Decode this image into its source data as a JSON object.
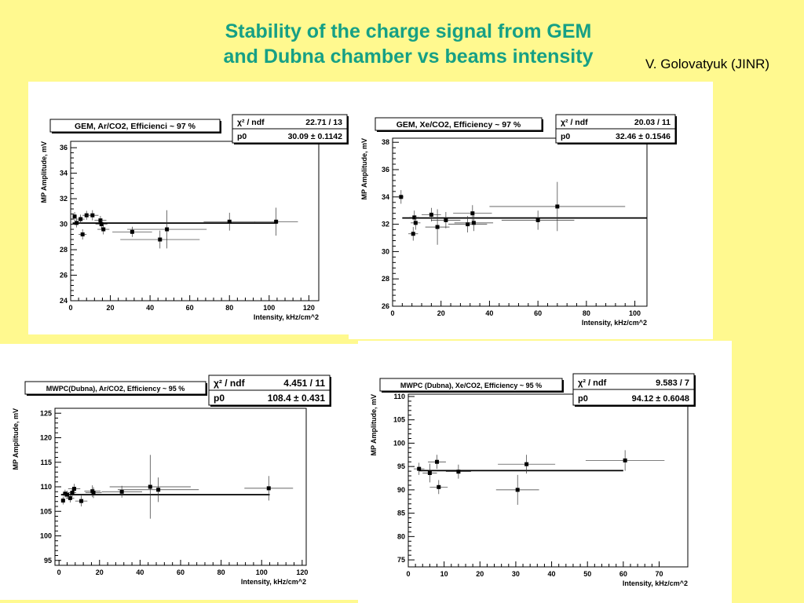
{
  "slide": {
    "title_line1": "Stability of the charge signal from GEM",
    "title_line2": "and Dubna chamber vs beams intensity",
    "author": "V. Golovatyuk (JINR)",
    "title_color": "#16a085",
    "background": "#fff98f"
  },
  "chart_data": [
    {
      "type": "scatter",
      "title": "GEM, Ar/CO2, Efficienci ~ 97 %",
      "xlabel": "Intensity, kHz/cm^2",
      "ylabel": "MP Amplitude, mV",
      "xlim": [
        0,
        125
      ],
      "ylim": [
        24,
        36.5
      ],
      "xticks": [
        0,
        20,
        40,
        60,
        80,
        100,
        120
      ],
      "yticks": [
        24,
        26,
        28,
        30,
        32,
        34,
        36
      ],
      "fit_label": "χ² / ndf",
      "fit_value": "22.71 / 13",
      "param_label": "p0",
      "param_value": "30.09 ± 0.1142",
      "fit_line": {
        "y": 30.09,
        "x_from": 1,
        "x_to": 104
      },
      "points": [
        {
          "x": 2,
          "y": 30.6,
          "xerr": 1,
          "yerr": 0.35
        },
        {
          "x": 3,
          "y": 30.1,
          "xerr": 1,
          "yerr": 0.35
        },
        {
          "x": 5,
          "y": 30.4,
          "xerr": 2,
          "yerr": 0.35
        },
        {
          "x": 6,
          "y": 29.2,
          "xerr": 2,
          "yerr": 0.4
        },
        {
          "x": 8,
          "y": 30.7,
          "xerr": 2,
          "yerr": 0.35
        },
        {
          "x": 11,
          "y": 30.7,
          "xerr": 3,
          "yerr": 0.4
        },
        {
          "x": 15,
          "y": 30.3,
          "xerr": 3,
          "yerr": 0.35
        },
        {
          "x": 15.5,
          "y": 30.0,
          "xerr": 3,
          "yerr": 0.35
        },
        {
          "x": 16.5,
          "y": 29.6,
          "xerr": 3,
          "yerr": 0.4
        },
        {
          "x": 31,
          "y": 29.4,
          "xerr": 10,
          "yerr": 0.4
        },
        {
          "x": 45,
          "y": 28.8,
          "xerr": 20,
          "yerr": 0.7
        },
        {
          "x": 48.5,
          "y": 29.6,
          "xerr": 20,
          "yerr": 1.5
        },
        {
          "x": 80,
          "y": 30.2,
          "xerr": 13,
          "yerr": 0.7
        },
        {
          "x": 103.5,
          "y": 30.2,
          "xerr": 11,
          "yerr": 1.1
        }
      ]
    },
    {
      "type": "scatter",
      "title": "GEM, Xe/CO2, Efficiency ~ 97 %",
      "xlabel": "Intensity, kHz/cm^2",
      "ylabel": "MP Amplitude, mV",
      "xlim": [
        0,
        105
      ],
      "ylim": [
        26,
        38.3
      ],
      "xticks": [
        0,
        20,
        40,
        60,
        80,
        100
      ],
      "yticks": [
        26,
        28,
        30,
        32,
        34,
        36,
        38
      ],
      "fit_label": "χ² / ndf",
      "fit_value": "20.03 / 11",
      "param_label": "p0",
      "param_value": "32.46 ± 0.1546",
      "fit_line": {
        "y": 32.46,
        "x_from": 4,
        "x_to": 105
      },
      "points": [
        {
          "x": 3.5,
          "y": 34.0,
          "xerr": 1,
          "yerr": 0.5
        },
        {
          "x": 8.5,
          "y": 31.3,
          "xerr": 2,
          "yerr": 0.5
        },
        {
          "x": 9,
          "y": 32.5,
          "xerr": 2,
          "yerr": 0.5
        },
        {
          "x": 9.5,
          "y": 32.1,
          "xerr": 2,
          "yerr": 0.5
        },
        {
          "x": 16,
          "y": 32.7,
          "xerr": 4,
          "yerr": 0.5
        },
        {
          "x": 18.5,
          "y": 31.8,
          "xerr": 5,
          "yerr": 1.3
        },
        {
          "x": 22,
          "y": 32.3,
          "xerr": 6,
          "yerr": 0.6
        },
        {
          "x": 31,
          "y": 32.0,
          "xerr": 8,
          "yerr": 0.6
        },
        {
          "x": 33,
          "y": 32.8,
          "xerr": 8,
          "yerr": 0.6
        },
        {
          "x": 33.5,
          "y": 32.1,
          "xerr": 8,
          "yerr": 0.6
        },
        {
          "x": 60,
          "y": 32.3,
          "xerr": 15,
          "yerr": 0.7
        },
        {
          "x": 68,
          "y": 33.3,
          "xerr": 28,
          "yerr": 1.8
        }
      ]
    },
    {
      "type": "scatter",
      "title": "MWPC(Dubna), Ar/CO2, Efficiency ~ 95 %",
      "xlabel": "Intensity, kHz/cm^2",
      "ylabel": "MP Amplitude, mV",
      "xlim": [
        -2,
        122
      ],
      "ylim": [
        94,
        126
      ],
      "xticks": [
        0,
        20,
        40,
        60,
        80,
        100,
        120
      ],
      "yticks": [
        95,
        100,
        105,
        110,
        115,
        120,
        125
      ],
      "fit_label": "χ² / ndf",
      "fit_value": "4.451 / 11",
      "param_label": "p0",
      "param_value": "108.4 ± 0.431",
      "fit_line": {
        "y": 108.4,
        "x_from": 1,
        "x_to": 104
      },
      "points": [
        {
          "x": 2,
          "y": 107.2,
          "xerr": 1,
          "yerr": 0.8
        },
        {
          "x": 3,
          "y": 108.6,
          "xerr": 1,
          "yerr": 0.8
        },
        {
          "x": 4,
          "y": 108.4,
          "xerr": 1.5,
          "yerr": 0.8
        },
        {
          "x": 5.5,
          "y": 107.7,
          "xerr": 2,
          "yerr": 0.9
        },
        {
          "x": 6.5,
          "y": 108.8,
          "xerr": 2,
          "yerr": 0.9
        },
        {
          "x": 7.5,
          "y": 109.6,
          "xerr": 3,
          "yerr": 1
        },
        {
          "x": 11,
          "y": 107.1,
          "xerr": 3,
          "yerr": 1.1
        },
        {
          "x": 16.5,
          "y": 109.1,
          "xerr": 4,
          "yerr": 1.2
        },
        {
          "x": 17,
          "y": 108.8,
          "xerr": 4,
          "yerr": 1.1
        },
        {
          "x": 31,
          "y": 109.0,
          "xerr": 10,
          "yerr": 1.2
        },
        {
          "x": 45,
          "y": 110.0,
          "xerr": 20,
          "yerr": 6.5
        },
        {
          "x": 49,
          "y": 109.4,
          "xerr": 20,
          "yerr": 2.5
        },
        {
          "x": 103.5,
          "y": 109.7,
          "xerr": 12,
          "yerr": 2.5
        }
      ]
    },
    {
      "type": "scatter",
      "title": "MWPC (Dubna), Xe/CO2, Efficiency ~ 95 %",
      "xlabel": "Intensity, kHz/cm^2",
      "ylabel": "MP Amplitude, mV",
      "xlim": [
        0,
        78
      ],
      "ylim": [
        73.5,
        110.5
      ],
      "xticks": [
        0,
        10,
        20,
        30,
        40,
        50,
        60,
        70
      ],
      "yticks": [
        75,
        80,
        85,
        90,
        95,
        100,
        105,
        110
      ],
      "fit_label": "χ² / ndf",
      "fit_value": "9.583 / 7",
      "param_label": "p0",
      "param_value": "94.12 ± 0.6048",
      "fit_line": {
        "y": 94.12,
        "x_from": 3,
        "x_to": 60
      },
      "points": [
        {
          "x": 3,
          "y": 94.5,
          "xerr": 1.5,
          "yerr": 1.3
        },
        {
          "x": 6,
          "y": 93.6,
          "xerr": 2,
          "yerr": 2
        },
        {
          "x": 8,
          "y": 96.0,
          "xerr": 2.5,
          "yerr": 1.5
        },
        {
          "x": 8.5,
          "y": 90.6,
          "xerr": 2.5,
          "yerr": 1.5
        },
        {
          "x": 14,
          "y": 93.9,
          "xerr": 3.5,
          "yerr": 1.5
        },
        {
          "x": 30.5,
          "y": 90.0,
          "xerr": 6,
          "yerr": 3.2
        },
        {
          "x": 33,
          "y": 95.5,
          "xerr": 8,
          "yerr": 2
        },
        {
          "x": 60.5,
          "y": 96.3,
          "xerr": 11,
          "yerr": 2.2
        }
      ]
    }
  ]
}
